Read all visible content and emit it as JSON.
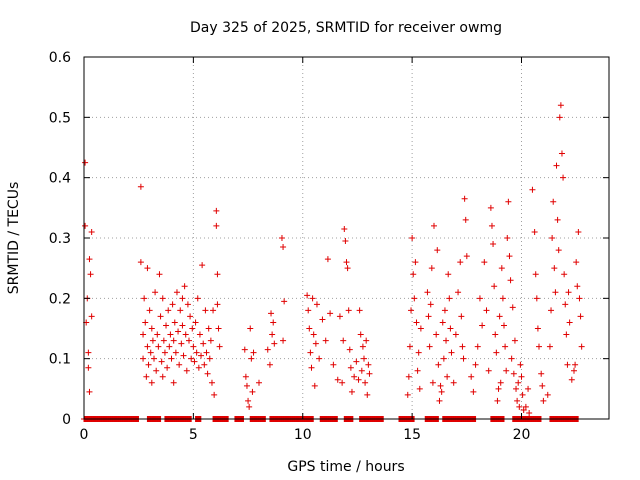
{
  "chart_data": {
    "type": "scatter",
    "title": "Day 325 of 2025, SRMTID for receiver owmg",
    "xlabel": "GPS time / hours",
    "ylabel": "SRMTID / TECUs",
    "xlim": [
      0,
      24
    ],
    "ylim": [
      0,
      0.6
    ],
    "xticks": [
      0,
      5,
      10,
      15,
      20
    ],
    "xtick_labels": [
      "0",
      "5",
      "10",
      "15",
      "20"
    ],
    "yticks": [
      0,
      0.1,
      0.2,
      0.3,
      0.4,
      0.5,
      0.6
    ],
    "ytick_labels": [
      "0",
      "0.1",
      "0.2",
      "0.3",
      "0.4",
      "0.5",
      "0.6"
    ],
    "grid": true,
    "marker": "+",
    "color": "#e00000",
    "series": [
      {
        "name": "SRMTID",
        "points": [
          [
            0.05,
            0.425
          ],
          [
            0.05,
            0.32
          ],
          [
            0.1,
            0.16
          ],
          [
            0.15,
            0.2
          ],
          [
            0.2,
            0.11
          ],
          [
            0.2,
            0.085
          ],
          [
            0.25,
            0.045
          ],
          [
            0.25,
            0.265
          ],
          [
            0.3,
            0.24
          ],
          [
            0.35,
            0.31
          ],
          [
            0.35,
            0.17
          ],
          [
            2.6,
            0.385
          ],
          [
            2.6,
            0.26
          ],
          [
            2.7,
            0.1
          ],
          [
            2.7,
            0.14
          ],
          [
            2.75,
            0.2
          ],
          [
            2.8,
            0.16
          ],
          [
            2.85,
            0.07
          ],
          [
            2.9,
            0.25
          ],
          [
            2.9,
            0.12
          ],
          [
            2.95,
            0.09
          ],
          [
            3.0,
            0.18
          ],
          [
            3.05,
            0.11
          ],
          [
            3.1,
            0.15
          ],
          [
            3.1,
            0.06
          ],
          [
            3.15,
            0.13
          ],
          [
            3.2,
            0.1
          ],
          [
            3.25,
            0.21
          ],
          [
            3.3,
            0.08
          ],
          [
            3.35,
            0.14
          ],
          [
            3.4,
            0.12
          ],
          [
            3.45,
            0.24
          ],
          [
            3.5,
            0.17
          ],
          [
            3.55,
            0.095
          ],
          [
            3.6,
            0.2
          ],
          [
            3.6,
            0.07
          ],
          [
            3.65,
            0.13
          ],
          [
            3.7,
            0.11
          ],
          [
            3.75,
            0.155
          ],
          [
            3.8,
            0.085
          ],
          [
            3.85,
            0.18
          ],
          [
            3.9,
            0.12
          ],
          [
            3.95,
            0.14
          ],
          [
            4.0,
            0.1
          ],
          [
            4.05,
            0.19
          ],
          [
            4.1,
            0.13
          ],
          [
            4.1,
            0.06
          ],
          [
            4.15,
            0.16
          ],
          [
            4.2,
            0.11
          ],
          [
            4.25,
            0.21
          ],
          [
            4.3,
            0.145
          ],
          [
            4.35,
            0.09
          ],
          [
            4.4,
            0.18
          ],
          [
            4.45,
            0.125
          ],
          [
            4.5,
            0.2
          ],
          [
            4.5,
            0.155
          ],
          [
            4.55,
            0.105
          ],
          [
            4.6,
            0.22
          ],
          [
            4.65,
            0.14
          ],
          [
            4.7,
            0.08
          ],
          [
            4.75,
            0.19
          ],
          [
            4.8,
            0.13
          ],
          [
            4.85,
            0.17
          ],
          [
            4.9,
            0.1
          ],
          [
            4.95,
            0.15
          ],
          [
            5.0,
            0.12
          ],
          [
            5.05,
            0.095
          ],
          [
            5.1,
            0.16
          ],
          [
            5.15,
            0.11
          ],
          [
            5.2,
            0.2
          ],
          [
            5.25,
            0.085
          ],
          [
            5.3,
            0.14
          ],
          [
            5.35,
            0.105
          ],
          [
            5.4,
            0.255
          ],
          [
            5.45,
            0.125
          ],
          [
            5.5,
            0.09
          ],
          [
            5.55,
            0.18
          ],
          [
            5.6,
            0.11
          ],
          [
            5.65,
            0.075
          ],
          [
            5.7,
            0.15
          ],
          [
            5.75,
            0.1
          ],
          [
            5.8,
            0.13
          ],
          [
            5.85,
            0.06
          ],
          [
            5.9,
            0.18
          ],
          [
            5.95,
            0.04
          ],
          [
            6.05,
            0.345
          ],
          [
            6.05,
            0.32
          ],
          [
            6.1,
            0.24
          ],
          [
            6.1,
            0.19
          ],
          [
            6.15,
            0.15
          ],
          [
            6.2,
            0.12
          ],
          [
            7.35,
            0.115
          ],
          [
            7.4,
            0.07
          ],
          [
            7.45,
            0.055
          ],
          [
            7.5,
            0.03
          ],
          [
            7.55,
            0.02
          ],
          [
            7.6,
            0.15
          ],
          [
            7.65,
            0.1
          ],
          [
            7.7,
            0.045
          ],
          [
            7.75,
            0.11
          ],
          [
            8.0,
            0.06
          ],
          [
            8.4,
            0.115
          ],
          [
            8.5,
            0.09
          ],
          [
            8.55,
            0.175
          ],
          [
            8.6,
            0.14
          ],
          [
            8.65,
            0.16
          ],
          [
            8.7,
            0.125
          ],
          [
            9.05,
            0.3
          ],
          [
            9.1,
            0.285
          ],
          [
            9.15,
            0.195
          ],
          [
            9.1,
            0.13
          ],
          [
            10.2,
            0.205
          ],
          [
            10.25,
            0.18
          ],
          [
            10.3,
            0.15
          ],
          [
            10.35,
            0.11
          ],
          [
            10.4,
            0.085
          ],
          [
            10.45,
            0.2
          ],
          [
            10.5,
            0.14
          ],
          [
            10.55,
            0.055
          ],
          [
            10.6,
            0.125
          ],
          [
            10.65,
            0.19
          ],
          [
            10.75,
            0.1
          ],
          [
            10.9,
            0.165
          ],
          [
            11.05,
            0.13
          ],
          [
            11.15,
            0.265
          ],
          [
            11.25,
            0.175
          ],
          [
            11.4,
            0.09
          ],
          [
            11.6,
            0.065
          ],
          [
            11.7,
            0.17
          ],
          [
            11.8,
            0.06
          ],
          [
            11.85,
            0.13
          ],
          [
            11.9,
            0.315
          ],
          [
            11.95,
            0.295
          ],
          [
            12.0,
            0.26
          ],
          [
            12.05,
            0.25
          ],
          [
            12.1,
            0.18
          ],
          [
            12.15,
            0.115
          ],
          [
            12.2,
            0.085
          ],
          [
            12.25,
            0.045
          ],
          [
            12.35,
            0.07
          ],
          [
            12.45,
            0.095
          ],
          [
            12.55,
            0.065
          ],
          [
            12.6,
            0.18
          ],
          [
            12.65,
            0.14
          ],
          [
            12.7,
            0.08
          ],
          [
            12.75,
            0.12
          ],
          [
            12.8,
            0.1
          ],
          [
            12.85,
            0.06
          ],
          [
            12.9,
            0.13
          ],
          [
            12.95,
            0.04
          ],
          [
            13.0,
            0.09
          ],
          [
            13.05,
            0.075
          ],
          [
            14.8,
            0.04
          ],
          [
            14.85,
            0.07
          ],
          [
            14.9,
            0.12
          ],
          [
            14.95,
            0.18
          ],
          [
            15.0,
            0.3
          ],
          [
            15.05,
            0.24
          ],
          [
            15.1,
            0.2
          ],
          [
            15.15,
            0.26
          ],
          [
            15.2,
            0.16
          ],
          [
            15.25,
            0.08
          ],
          [
            15.3,
            0.11
          ],
          [
            15.35,
            0.05
          ],
          [
            15.4,
            0.15
          ],
          [
            15.7,
            0.21
          ],
          [
            15.75,
            0.17
          ],
          [
            15.8,
            0.12
          ],
          [
            15.85,
            0.19
          ],
          [
            15.9,
            0.25
          ],
          [
            15.95,
            0.06
          ],
          [
            16.0,
            0.32
          ],
          [
            16.1,
            0.14
          ],
          [
            16.15,
            0.28
          ],
          [
            16.2,
            0.09
          ],
          [
            16.25,
            0.03
          ],
          [
            16.3,
            0.055
          ],
          [
            16.35,
            0.045
          ],
          [
            16.4,
            0.16
          ],
          [
            16.45,
            0.1
          ],
          [
            16.5,
            0.18
          ],
          [
            16.55,
            0.13
          ],
          [
            16.6,
            0.07
          ],
          [
            16.65,
            0.24
          ],
          [
            16.7,
            0.2
          ],
          [
            16.75,
            0.15
          ],
          [
            16.8,
            0.11
          ],
          [
            16.9,
            0.06
          ],
          [
            17.0,
            0.14
          ],
          [
            17.1,
            0.21
          ],
          [
            17.2,
            0.26
          ],
          [
            17.25,
            0.17
          ],
          [
            17.3,
            0.12
          ],
          [
            17.35,
            0.1
          ],
          [
            17.4,
            0.365
          ],
          [
            17.45,
            0.33
          ],
          [
            17.5,
            0.27
          ],
          [
            17.7,
            0.07
          ],
          [
            17.8,
            0.045
          ],
          [
            17.9,
            0.09
          ],
          [
            18.0,
            0.12
          ],
          [
            18.1,
            0.2
          ],
          [
            18.2,
            0.155
          ],
          [
            18.3,
            0.26
          ],
          [
            18.4,
            0.18
          ],
          [
            18.5,
            0.08
          ],
          [
            18.6,
            0.35
          ],
          [
            18.65,
            0.32
          ],
          [
            18.7,
            0.29
          ],
          [
            18.75,
            0.22
          ],
          [
            18.8,
            0.14
          ],
          [
            18.85,
            0.11
          ],
          [
            18.9,
            0.03
          ],
          [
            18.95,
            0.05
          ],
          [
            19.0,
            0.17
          ],
          [
            19.05,
            0.06
          ],
          [
            19.1,
            0.25
          ],
          [
            19.15,
            0.2
          ],
          [
            19.2,
            0.155
          ],
          [
            19.25,
            0.12
          ],
          [
            19.3,
            0.08
          ],
          [
            19.35,
            0.3
          ],
          [
            19.4,
            0.36
          ],
          [
            19.45,
            0.27
          ],
          [
            19.5,
            0.23
          ],
          [
            19.55,
            0.1
          ],
          [
            19.6,
            0.185
          ],
          [
            19.65,
            0.075
          ],
          [
            19.7,
            0.13
          ],
          [
            19.75,
            0.05
          ],
          [
            19.8,
            0.03
          ],
          [
            19.85,
            0.06
          ],
          [
            19.9,
            0.02
          ],
          [
            19.95,
            0.09
          ],
          [
            20.0,
            0.07
          ],
          [
            20.05,
            0.04
          ],
          [
            20.1,
            0.015
          ],
          [
            20.2,
            0.02
          ],
          [
            20.3,
            0.05
          ],
          [
            20.35,
            0.01
          ],
          [
            20.5,
            0.38
          ],
          [
            20.6,
            0.31
          ],
          [
            20.65,
            0.24
          ],
          [
            20.7,
            0.2
          ],
          [
            20.75,
            0.15
          ],
          [
            20.8,
            0.12
          ],
          [
            20.9,
            0.075
          ],
          [
            20.95,
            0.055
          ],
          [
            21.0,
            0.03
          ],
          [
            21.2,
            0.04
          ],
          [
            21.3,
            0.12
          ],
          [
            21.35,
            0.18
          ],
          [
            21.4,
            0.3
          ],
          [
            21.45,
            0.36
          ],
          [
            21.5,
            0.25
          ],
          [
            21.55,
            0.21
          ],
          [
            21.6,
            0.42
          ],
          [
            21.65,
            0.33
          ],
          [
            21.7,
            0.28
          ],
          [
            21.75,
            0.5
          ],
          [
            21.8,
            0.52
          ],
          [
            21.85,
            0.44
          ],
          [
            21.9,
            0.4
          ],
          [
            21.95,
            0.24
          ],
          [
            22.0,
            0.19
          ],
          [
            22.05,
            0.14
          ],
          [
            22.1,
            0.09
          ],
          [
            22.15,
            0.21
          ],
          [
            22.2,
            0.16
          ],
          [
            22.3,
            0.065
          ],
          [
            22.4,
            0.08
          ],
          [
            22.45,
            0.09
          ],
          [
            22.5,
            0.26
          ],
          [
            22.55,
            0.22
          ],
          [
            22.6,
            0.31
          ],
          [
            22.65,
            0.2
          ],
          [
            22.7,
            0.17
          ],
          [
            22.75,
            0.12
          ]
        ],
        "zero_runs": [
          [
            0.0,
            2.5
          ],
          [
            2.9,
            3.5
          ],
          [
            3.7,
            4.9
          ],
          [
            5.1,
            5.35
          ],
          [
            5.9,
            6.6
          ],
          [
            6.9,
            7.3
          ],
          [
            7.6,
            8.3
          ],
          [
            8.5,
            10.5
          ],
          [
            10.8,
            11.6
          ],
          [
            11.9,
            12.3
          ],
          [
            12.6,
            13.7
          ],
          [
            14.4,
            15.1
          ],
          [
            15.6,
            16.2
          ],
          [
            16.4,
            17.9
          ],
          [
            18.6,
            19.2
          ],
          [
            19.6,
            20.9
          ],
          [
            21.3,
            22.6
          ]
        ]
      }
    ]
  }
}
